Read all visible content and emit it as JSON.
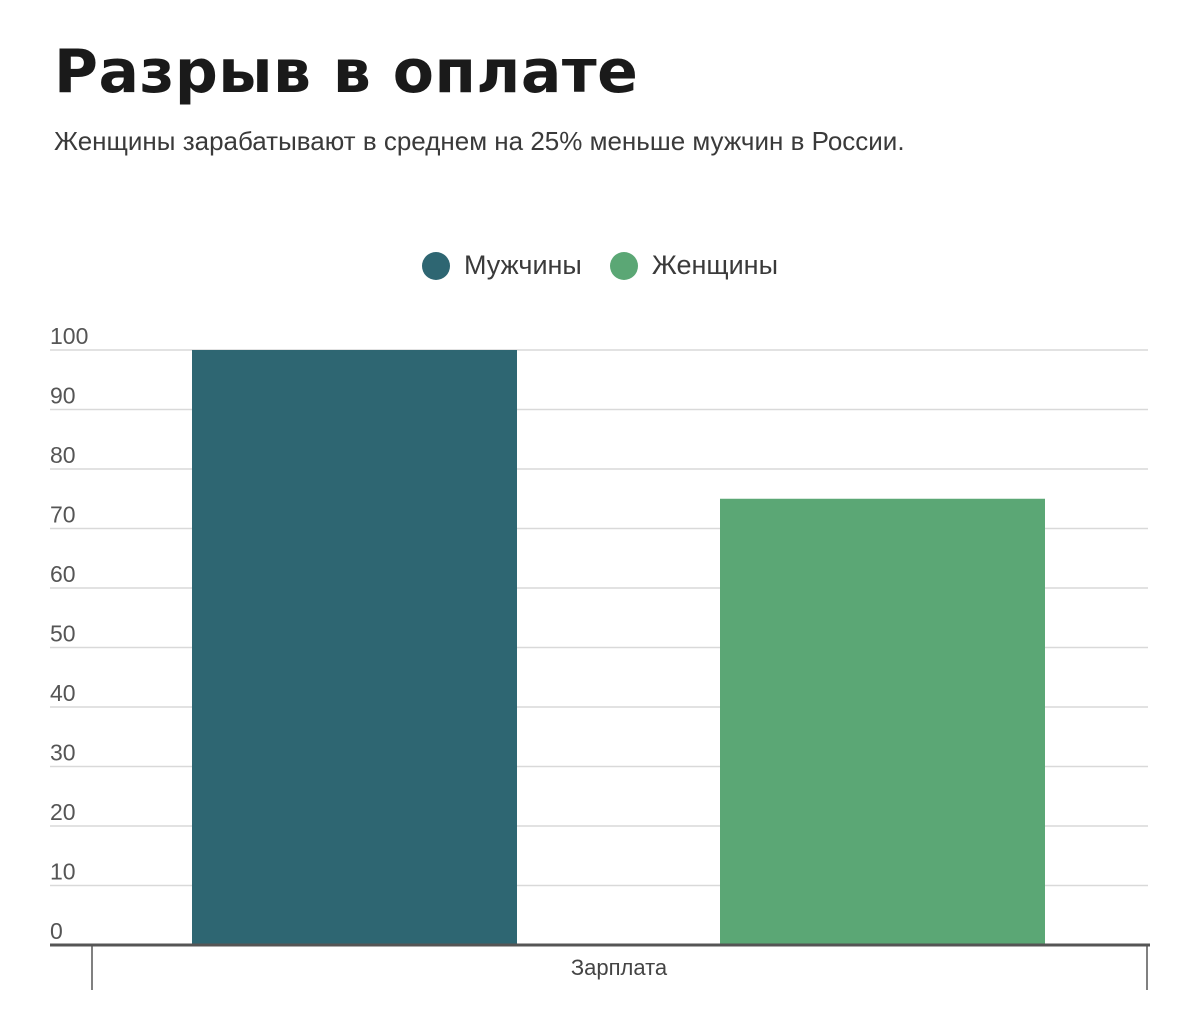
{
  "chart_data": {
    "type": "bar",
    "title": "Разрыв в оплате",
    "subtitle": "Женщины зарабатывают в среднем на 25% меньше мужчин в России.",
    "categories": [
      "Зарплата"
    ],
    "series": [
      {
        "name": "Мужчины",
        "values": [
          100
        ],
        "color": "#2e6672"
      },
      {
        "name": "Женщины",
        "values": [
          75
        ],
        "color": "#5ba775"
      }
    ],
    "xlabel": "",
    "ylabel": "",
    "ylim": [
      0,
      100
    ],
    "yticks": [
      "0",
      "10",
      "20",
      "30",
      "40",
      "50",
      "60",
      "70",
      "80",
      "90",
      "100"
    ],
    "grid": true,
    "legend_position": "top-center"
  }
}
